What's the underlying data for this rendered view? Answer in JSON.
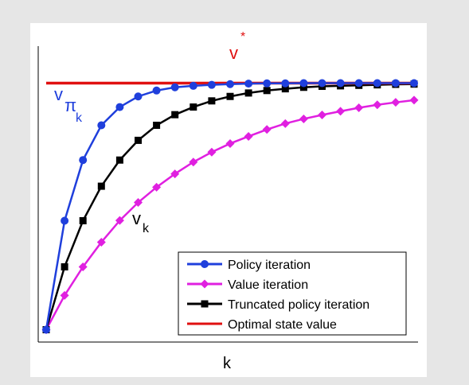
{
  "chart_data": {
    "type": "line",
    "xlabel": "k",
    "ylabel": "",
    "grid": false,
    "legend_position": "bottom-right",
    "x": [
      0,
      1,
      2,
      3,
      4,
      5,
      6,
      7,
      8,
      9,
      10,
      11,
      12,
      13,
      14,
      15,
      16,
      17,
      18,
      19,
      20
    ],
    "ylim": [
      -0.05,
      1.15
    ],
    "series": [
      {
        "name": "Policy iteration",
        "color": "#1f3fdc",
        "marker": "circle",
        "values": [
          0,
          0.442,
          0.688,
          0.829,
          0.903,
          0.946,
          0.97,
          0.983,
          0.989,
          0.993,
          0.996,
          0.998,
          0.999,
          0.999,
          1.0,
          1.0,
          1.0,
          1.0,
          1.0,
          1.0,
          1.0
        ]
      },
      {
        "name": "Value iteration",
        "color": "#e020e0",
        "marker": "diamond",
        "values": [
          0,
          0.139,
          0.255,
          0.355,
          0.443,
          0.516,
          0.578,
          0.632,
          0.68,
          0.72,
          0.755,
          0.784,
          0.812,
          0.836,
          0.855,
          0.871,
          0.886,
          0.9,
          0.912,
          0.922,
          0.931
        ]
      },
      {
        "name": "Truncated policy iteration",
        "color": "#000000",
        "marker": "square",
        "values": [
          0,
          0.255,
          0.442,
          0.582,
          0.688,
          0.768,
          0.829,
          0.872,
          0.903,
          0.928,
          0.946,
          0.96,
          0.97,
          0.977,
          0.983,
          0.987,
          0.989,
          0.991,
          0.993,
          0.995,
          0.996
        ]
      },
      {
        "name": "Optimal state value",
        "color": "#e01010",
        "marker": "none",
        "values": [
          1,
          1,
          1,
          1,
          1,
          1,
          1,
          1,
          1,
          1,
          1,
          1,
          1,
          1,
          1,
          1,
          1,
          1,
          1,
          1,
          1
        ]
      }
    ],
    "annotations": {
      "v_star": {
        "base": "v",
        "sup": "*",
        "color": "#e01010"
      },
      "v_pi_k": {
        "base": "v",
        "sub": "π",
        "subsub": "k",
        "color": "#1f3fdc"
      },
      "v_k": {
        "base": "v",
        "sub": "k",
        "color": "#000000"
      }
    }
  }
}
